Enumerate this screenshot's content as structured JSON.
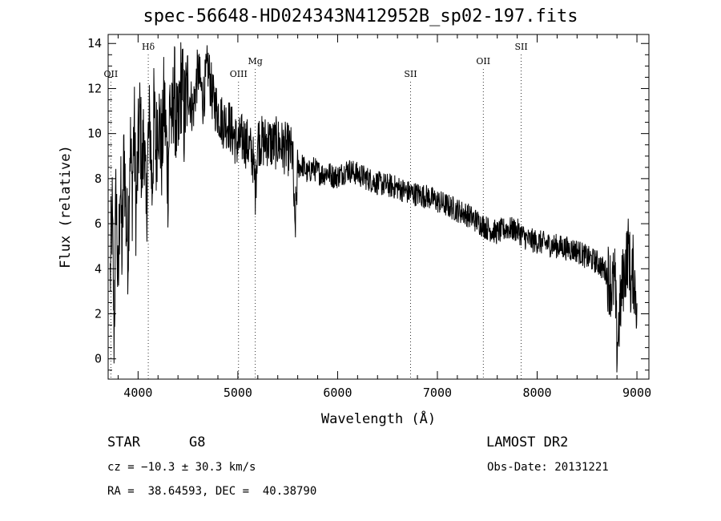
{
  "title": "spec-56648-HD024343N412952B_sp02-197.fits",
  "footer": {
    "object_class": "STAR",
    "subclass": "G8",
    "survey": "LAMOST DR2",
    "cz": "cz = −10.3 ± 30.3 km/s",
    "obs_date": "Obs-Date: 20131221",
    "coords": "RA =  38.64593, DEC =  40.38790"
  },
  "chart_data": {
    "type": "line",
    "title": "spec-56648-HD024343N412952B_sp02-197.fits",
    "xlabel": "Wavelength (Å)",
    "ylabel": "Flux (relative)",
    "xlim": [
      3700,
      9120
    ],
    "ylim": [
      -0.9,
      14.4
    ],
    "xticks": [
      4000,
      5000,
      6000,
      7000,
      8000,
      9000
    ],
    "yticks": [
      0,
      2,
      4,
      6,
      8,
      10,
      12,
      14
    ],
    "grid": false,
    "spectral_lines": [
      {
        "label": "OII",
        "wavelength": 3727,
        "row": 1
      },
      {
        "label": "Hδ",
        "wavelength": 4102,
        "row": 0
      },
      {
        "label": "OIII",
        "wavelength": 5007,
        "row": 1
      },
      {
        "label": "Mg",
        "wavelength": 5175,
        "row": 2
      },
      {
        "label": "SII",
        "wavelength": 6731,
        "row": 1
      },
      {
        "label": "OII",
        "wavelength": 7460,
        "row": 2
      },
      {
        "label": "SII",
        "wavelength": 7840,
        "row": 0
      }
    ],
    "series": [
      {
        "x": [
          3720,
          3740,
          3760,
          3780,
          3800,
          3820,
          3840,
          3860,
          3880,
          3900,
          3920,
          3940,
          3960,
          3980,
          4000,
          4020,
          4040,
          4060,
          4080,
          4100,
          4120,
          4140,
          4160,
          4180,
          4200,
          4220,
          4240,
          4260,
          4280,
          4300,
          4320,
          4340,
          4360,
          4380,
          4400,
          4420,
          4440,
          4460,
          4480,
          4500,
          4550,
          4600,
          4650,
          4700,
          4750,
          4800,
          4850,
          4900,
          4950,
          5000,
          5050,
          5100,
          5150,
          5175,
          5200,
          5250,
          5300,
          5350,
          5400,
          5450,
          5500,
          5550,
          5570,
          5600,
          5650,
          5700,
          5750,
          5800,
          5850,
          5900,
          5950,
          6000,
          6100,
          6200,
          6300,
          6400,
          6500,
          6600,
          6700,
          6800,
          6900,
          7000,
          7100,
          7200,
          7300,
          7400,
          7500,
          7600,
          7700,
          7800,
          7900,
          8000,
          8100,
          8200,
          8300,
          8400,
          8500,
          8600,
          8700,
          8750,
          8780,
          8800,
          8850,
          8900,
          8920,
          8940,
          8960,
          8980,
          9000
        ],
        "y": [
          3.5,
          6.5,
          1.0,
          7.8,
          2.5,
          8.2,
          4.5,
          9.5,
          6.0,
          5.0,
          9.8,
          7.2,
          10.5,
          6.5,
          9.0,
          10.8,
          8.0,
          10.5,
          6.0,
          9.5,
          10.5,
          7.5,
          11.0,
          9.0,
          11.2,
          10.0,
          9.0,
          11.5,
          9.8,
          8.0,
          11.8,
          10.0,
          12.2,
          10.5,
          9.5,
          11.8,
          12.5,
          10.5,
          11.5,
          12.0,
          11.0,
          12.8,
          11.5,
          13.0,
          11.5,
          11.0,
          10.5,
          10.5,
          10.0,
          9.5,
          9.8,
          9.5,
          9.0,
          7.5,
          9.8,
          9.6,
          9.7,
          9.5,
          9.6,
          9.4,
          9.3,
          9.1,
          5.5,
          8.5,
          8.6,
          8.2,
          8.5,
          8.3,
          8.2,
          8.3,
          8.1,
          8.1,
          8.4,
          8.2,
          8.0,
          7.8,
          7.7,
          7.6,
          7.4,
          7.3,
          7.2,
          7.0,
          6.8,
          6.6,
          6.4,
          6.1,
          5.8,
          5.6,
          5.8,
          5.7,
          5.3,
          5.2,
          5.1,
          5.0,
          4.9,
          4.8,
          4.5,
          4.3,
          3.8,
          3.2,
          3.5,
          0.5,
          3.2,
          4.5,
          5.0,
          3.0,
          4.0,
          3.2,
          2.5
        ]
      }
    ]
  }
}
